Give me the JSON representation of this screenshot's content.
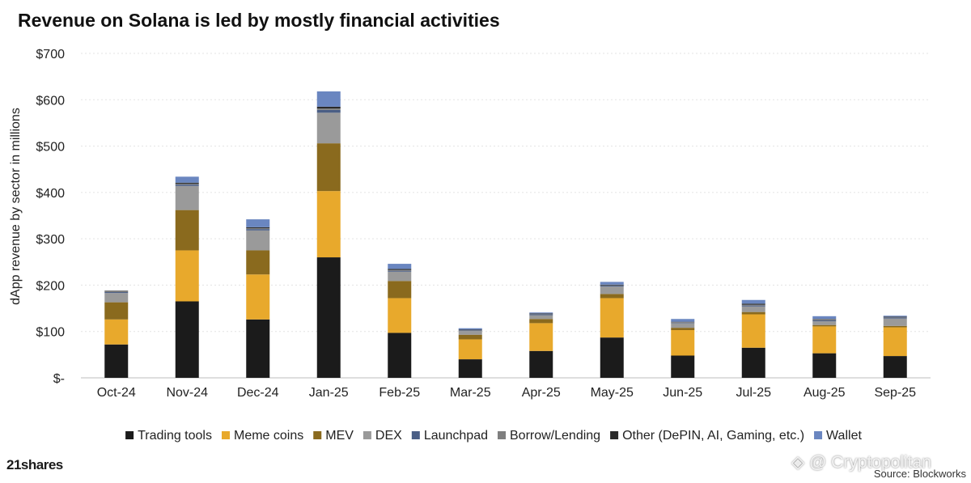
{
  "chart_data": {
    "type": "bar",
    "stacked": true,
    "title": "Revenue on Solana is led by mostly financial activities",
    "ylabel": "dApp revenue by sector in millions",
    "ylim": [
      0,
      700
    ],
    "yticks": [
      0,
      100,
      200,
      300,
      400,
      500,
      600,
      700
    ],
    "ytick_labels": [
      "$-",
      "$100",
      "$200",
      "$300",
      "$400",
      "$500",
      "$600",
      "$700"
    ],
    "grid": true,
    "legend_position": "bottom",
    "categories": [
      "Oct-24",
      "Nov-24",
      "Dec-24",
      "Jan-25",
      "Feb-25",
      "Mar-25",
      "Apr-25",
      "May-25",
      "Jun-25",
      "Jul-25",
      "Aug-25",
      "Sep-25"
    ],
    "series": [
      {
        "name": "Trading tools",
        "color": "#1b1b1b",
        "values": [
          72,
          165,
          126,
          260,
          97,
          40,
          58,
          87,
          48,
          65,
          53,
          47
        ]
      },
      {
        "name": "Meme coins",
        "color": "#e8a92c",
        "values": [
          54,
          110,
          97,
          143,
          75,
          43,
          60,
          85,
          55,
          72,
          58,
          62
        ]
      },
      {
        "name": "MEV",
        "color": "#8a6a1e",
        "values": [
          37,
          87,
          52,
          103,
          37,
          10,
          9,
          9,
          5,
          5,
          3,
          3
        ]
      },
      {
        "name": "DEX",
        "color": "#9a9a9a",
        "values": [
          20,
          52,
          43,
          66,
          20,
          8,
          8,
          16,
          10,
          12,
          8,
          16
        ]
      },
      {
        "name": "Launchpad",
        "color": "#4a5e85",
        "values": [
          2,
          3,
          3,
          6,
          2,
          1,
          2,
          2,
          1,
          2,
          2,
          2
        ]
      },
      {
        "name": "Borrow/Lending",
        "color": "#7f7f7f",
        "values": [
          2,
          2,
          2,
          3,
          2,
          1,
          1,
          1,
          1,
          2,
          2,
          1
        ]
      },
      {
        "name": "Other (DePIN, AI, Gaming, etc.)",
        "color": "#2a2a2a",
        "values": [
          1,
          2,
          2,
          4,
          2,
          1,
          1,
          1,
          1,
          2,
          1,
          1
        ]
      },
      {
        "name": "Wallet",
        "color": "#6a86c0",
        "values": [
          0,
          13,
          17,
          33,
          11,
          3,
          2,
          6,
          6,
          8,
          6,
          2
        ]
      }
    ]
  },
  "branding": {
    "logo": "21shares",
    "source": "Source: Blockworks",
    "watermark": "◈ @ Cryptopolitan"
  }
}
